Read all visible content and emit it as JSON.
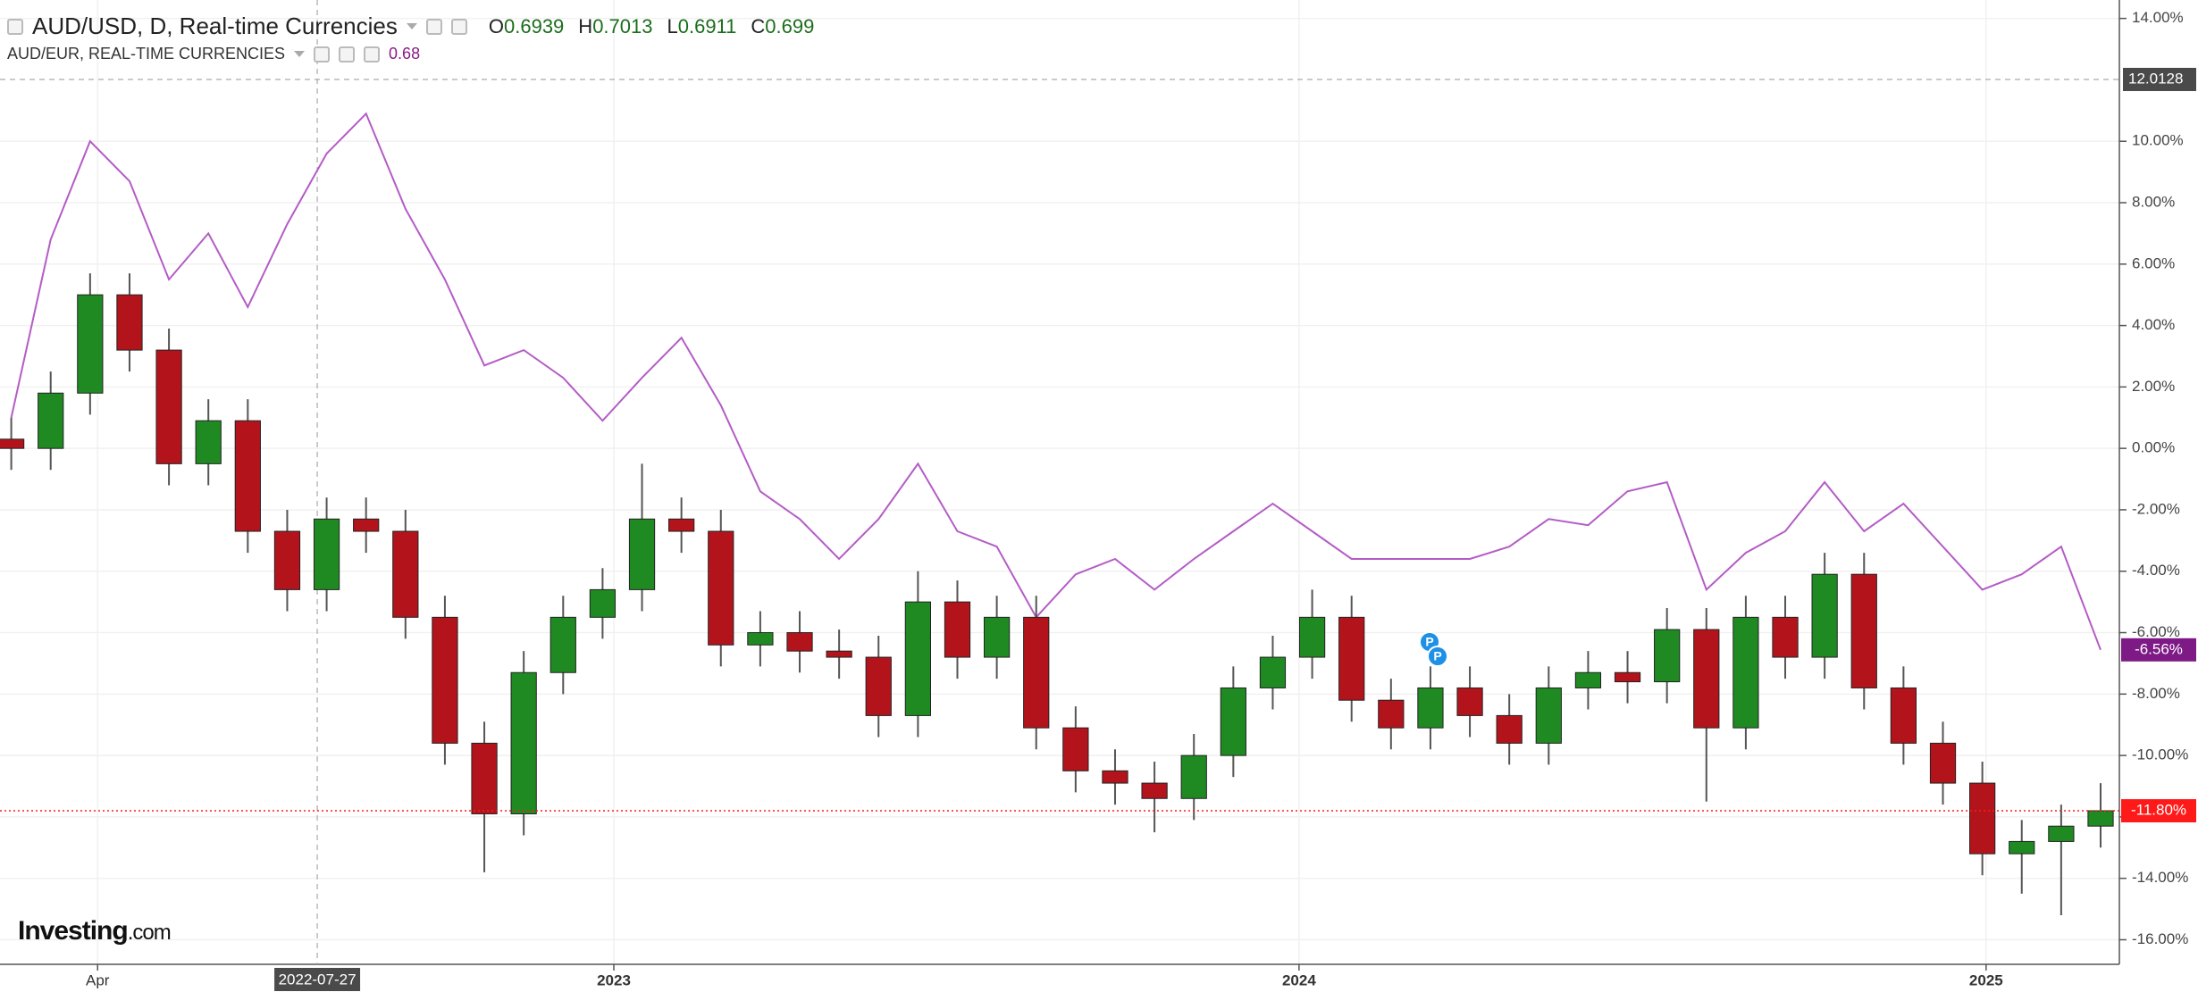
{
  "chart_data": {
    "type": "candlestick",
    "x": [
      "2022-02-14",
      "2022-03-07",
      "2022-03-28",
      "2022-04-18",
      "2022-05-09",
      "2022-05-30",
      "2022-06-20",
      "2022-07-11",
      "2022-08-01",
      "2022-08-22",
      "2022-09-12",
      "2022-10-03",
      "2022-10-24",
      "2022-11-14",
      "2022-12-05",
      "2022-12-26",
      "2023-01-16",
      "2023-02-06",
      "2023-02-27",
      "2023-03-20",
      "2023-04-10",
      "2023-05-01",
      "2023-05-22",
      "2023-06-12",
      "2023-07-03",
      "2023-07-24",
      "2023-08-14",
      "2023-09-04",
      "2023-09-25",
      "2023-10-16",
      "2023-11-06",
      "2023-11-27",
      "2023-12-18",
      "2024-01-08",
      "2024-01-29",
      "2024-02-19",
      "2024-03-11",
      "2024-04-01",
      "2024-04-22",
      "2024-05-13",
      "2024-06-03",
      "2024-06-24",
      "2024-07-15",
      "2024-08-05",
      "2024-08-26",
      "2024-09-16",
      "2024-10-07",
      "2024-10-28",
      "2024-11-18",
      "2024-12-09",
      "2024-12-30",
      "2025-01-20",
      "2025-02-10",
      "2025-03-03"
    ],
    "series": [
      {
        "name": "AUD/USD, D, Real-time Currencies",
        "type": "candlestick",
        "up_color": "#1f8a22",
        "down_color": "#b3141c",
        "ohlc_header": [
          {
            "label": "O",
            "value": 0.6939
          },
          {
            "label": "H",
            "value": 0.7013
          },
          {
            "label": "L",
            "value": 0.6911
          },
          {
            "label": "C",
            "value": 0.699
          }
        ],
        "open": [
          0.3,
          0,
          1.8,
          5,
          3.2,
          -0.5,
          0.9,
          -2.7,
          -4.6,
          -2.3,
          -2.7,
          -5.5,
          -9.6,
          -11.9,
          -7.3,
          -5.5,
          -4.6,
          -2.3,
          -2.7,
          -6.4,
          -6.0,
          -6.6,
          -6.8,
          -8.7,
          -5.0,
          -6.8,
          -5.5,
          -9.1,
          -10.5,
          -10.9,
          -11.4,
          -10.0,
          -7.8,
          -6.8,
          -5.5,
          -8.2,
          -9.1,
          -7.8,
          -8.7,
          -9.6,
          -7.8,
          -7.3,
          -7.6,
          -5.9,
          -9.1,
          -5.5,
          -6.8,
          -4.1,
          -7.8,
          -9.6,
          -10.9,
          -13.2,
          -12.8,
          -12.3
        ],
        "high": [
          1.0,
          2.5,
          5.7,
          5.7,
          3.9,
          1.6,
          1.6,
          -2.0,
          -1.6,
          -1.6,
          -2.0,
          -4.8,
          -8.9,
          -6.6,
          -4.8,
          -3.9,
          -0.5,
          -1.6,
          -2.0,
          -5.3,
          -5.3,
          -5.9,
          -6.1,
          -4.0,
          -4.3,
          -4.8,
          -4.8,
          -8.4,
          -9.8,
          -10.2,
          -9.3,
          -7.1,
          -6.1,
          -4.6,
          -4.8,
          -7.5,
          -7.1,
          -7.1,
          -8.0,
          -7.1,
          -6.6,
          -6.6,
          -5.2,
          -5.2,
          -4.8,
          -4.8,
          -3.4,
          -3.4,
          -7.1,
          -8.9,
          -10.2,
          -12.1,
          -11.6,
          -10.9
        ],
        "low": [
          -0.7,
          -0.7,
          1.1,
          2.5,
          -1.2,
          -1.2,
          -3.4,
          -5.3,
          -5.3,
          -3.4,
          -6.2,
          -10.3,
          -13.8,
          -12.6,
          -8.0,
          -6.2,
          -5.3,
          -3.4,
          -7.1,
          -7.1,
          -7.3,
          -7.5,
          -9.4,
          -9.4,
          -7.5,
          -7.5,
          -9.8,
          -11.2,
          -11.6,
          -12.5,
          -12.1,
          -10.7,
          -8.5,
          -7.5,
          -8.9,
          -9.8,
          -9.8,
          -9.4,
          -10.3,
          -10.3,
          -8.5,
          -8.3,
          -8.3,
          -11.5,
          -9.8,
          -7.5,
          -7.5,
          -8.5,
          -10.3,
          -11.6,
          -13.9,
          -14.5,
          -15.2,
          -13.0
        ],
        "close": [
          0,
          1.8,
          5,
          3.2,
          -0.5,
          0.9,
          -2.7,
          -4.6,
          -2.3,
          -2.7,
          -5.5,
          -9.6,
          -11.9,
          -7.3,
          -5.5,
          -4.6,
          -2.3,
          -2.7,
          -6.4,
          -6.0,
          -6.6,
          -6.8,
          -8.7,
          -5.0,
          -6.8,
          -5.5,
          -9.1,
          -10.5,
          -10.9,
          -11.4,
          -10.0,
          -7.8,
          -6.8,
          -5.5,
          -8.2,
          -9.1,
          -7.8,
          -8.7,
          -9.6,
          -7.8,
          -7.3,
          -7.6,
          -5.9,
          -9.1,
          -5.5,
          -6.8,
          -4.1,
          -7.8,
          -9.6,
          -10.9,
          -13.2,
          -12.8,
          -12.3,
          -11.8
        ],
        "last_value_label": "-11.80%",
        "last_color": "#ff1a1a"
      },
      {
        "name": "AUD/EUR, REAL-TIME CURRENCIES",
        "type": "line",
        "color": "#b45cc6",
        "values": [
          1,
          6.8,
          10,
          8.7,
          5.5,
          7,
          4.6,
          7.3,
          9.6,
          10.9,
          7.8,
          5.5,
          2.7,
          3.2,
          2.3,
          0.9,
          2.3,
          3.6,
          1.4,
          -1.4,
          -2.3,
          -3.6,
          -2.3,
          -0.5,
          -2.7,
          -3.2,
          -5.5,
          -4.1,
          -3.6,
          -4.6,
          -3.6,
          -2.7,
          -1.8,
          -2.7,
          -3.6,
          -3.6,
          -3.6,
          -3.6,
          -3.2,
          -2.3,
          -2.5,
          -1.4,
          -1.1,
          -4.6,
          -3.4,
          -2.7,
          -1.1,
          -2.7,
          -1.8,
          -3.2,
          -4.6,
          -4.1,
          -3.2,
          -6.56
        ],
        "last_price": 0.68,
        "last_value_label": "-6.56%",
        "last_color": "#7d1a86"
      }
    ],
    "xlim": [
      "2022-02-08",
      "2025-03-13"
    ],
    "xticks": [
      {
        "value": "2022-04-01",
        "label": "Apr"
      },
      {
        "value": "2023-01-01",
        "label": "2023"
      },
      {
        "value": "2024-01-01",
        "label": "2024"
      },
      {
        "value": "2025-01-01",
        "label": "2025"
      }
    ],
    "ylim": [
      -16.8,
      14.6
    ],
    "yticks": [
      {
        "value": 14,
        "label": "14.00%"
      },
      {
        "value": 10,
        "label": "10.00%"
      },
      {
        "value": 8,
        "label": "8.00%"
      },
      {
        "value": 6,
        "label": "6.00%"
      },
      {
        "value": 4,
        "label": "4.00%"
      },
      {
        "value": 2,
        "label": "2.00%"
      },
      {
        "value": 0,
        "label": "0.00%"
      },
      {
        "value": -2,
        "label": "-2.00%"
      },
      {
        "value": -4,
        "label": "-4.00%"
      },
      {
        "value": -6,
        "label": "-6.00%"
      },
      {
        "value": -8,
        "label": "-8.00%"
      },
      {
        "value": -10,
        "label": "-10.00%"
      },
      {
        "value": -12,
        "label": "-12.00%"
      },
      {
        "value": -14,
        "label": "-14.00%"
      },
      {
        "value": -16,
        "label": "-16.00%"
      }
    ],
    "crosshair": {
      "x": "2022-07-27",
      "y": 12.0128
    },
    "annotations": [
      "P",
      "P"
    ],
    "grid": true,
    "watermark": {
      "brand": "Investing",
      "suffix": ".com"
    }
  }
}
